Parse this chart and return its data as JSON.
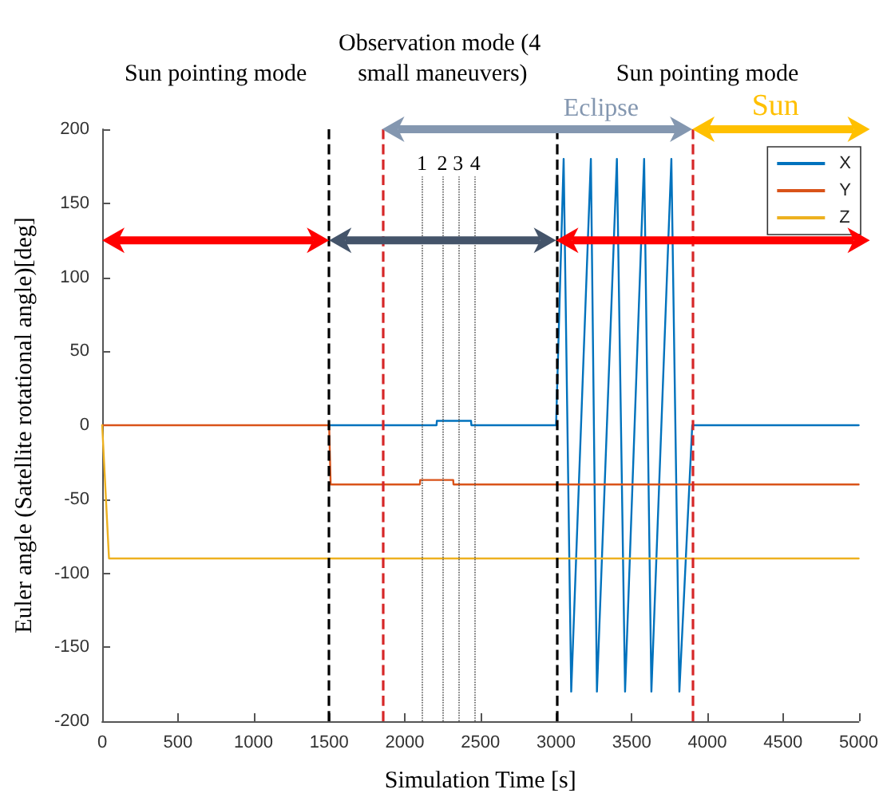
{
  "chart_data": {
    "type": "line",
    "xlabel": "Simulation Time [s]",
    "ylabel": "Euler angle (Satellite rotational angle)[deg]",
    "xlim": [
      0,
      5000
    ],
    "xticks": [
      0,
      500,
      1000,
      1500,
      2000,
      2500,
      3000,
      3500,
      4000,
      4500,
      5000
    ],
    "ylim": [
      -200,
      200
    ],
    "yticks": [
      -200,
      -150,
      -100,
      -50,
      0,
      50,
      100,
      150,
      200
    ],
    "grid": false,
    "legend": "top right",
    "marker": "none",
    "line_style": "solid",
    "series": [
      {
        "name": "X",
        "color": "#0072bd",
        "x": [
          1500,
          2210,
          2212,
          2438,
          2440,
          3000,
          3050,
          3100,
          3230,
          3270,
          3402,
          3456,
          3582,
          3630,
          3762,
          3815,
          3900,
          5000
        ],
        "values": [
          0,
          0,
          3,
          3,
          0,
          0,
          180,
          -180,
          180,
          -180,
          180,
          -180,
          180,
          -180,
          180,
          -180,
          0,
          0
        ]
      },
      {
        "name": "Y",
        "color": "#d95319",
        "x": [
          0,
          1500,
          1510,
          2100,
          2102,
          2320,
          2322,
          5000
        ],
        "values": [
          0,
          0,
          -40,
          -40,
          -37,
          -37,
          -40,
          -40
        ]
      },
      {
        "name": "Z",
        "color": "#edb120",
        "x": [
          0,
          45,
          5000
        ],
        "values": [
          0,
          -90,
          -90
        ]
      }
    ],
    "ref_lines": [
      {
        "axis": "x",
        "value": 1500,
        "color": "#000000",
        "line_style": "dashed"
      },
      {
        "axis": "x",
        "value": 3000,
        "color": "#000000",
        "line_style": "dashed"
      },
      {
        "axis": "x",
        "value": 1850,
        "color": "#d62728",
        "line_style": "dashed"
      },
      {
        "axis": "x",
        "value": 3900,
        "color": "#d62728",
        "line_style": "dashed"
      },
      {
        "axis": "x",
        "value": 2113,
        "color": "#555555",
        "line_style": "dotted"
      },
      {
        "axis": "x",
        "value": 2248,
        "color": "#555555",
        "line_style": "dotted"
      },
      {
        "axis": "x",
        "value": 2352,
        "color": "#555555",
        "line_style": "dotted"
      },
      {
        "axis": "x",
        "value": 2466,
        "color": "#555555",
        "line_style": "dotted"
      }
    ],
    "annotations": [
      "Sun pointing mode",
      "Observation mode (4 small maneuvers)",
      "Sun pointing mode",
      "Eclipse",
      "Sun",
      "1",
      "2",
      "3",
      "4"
    ]
  }
}
